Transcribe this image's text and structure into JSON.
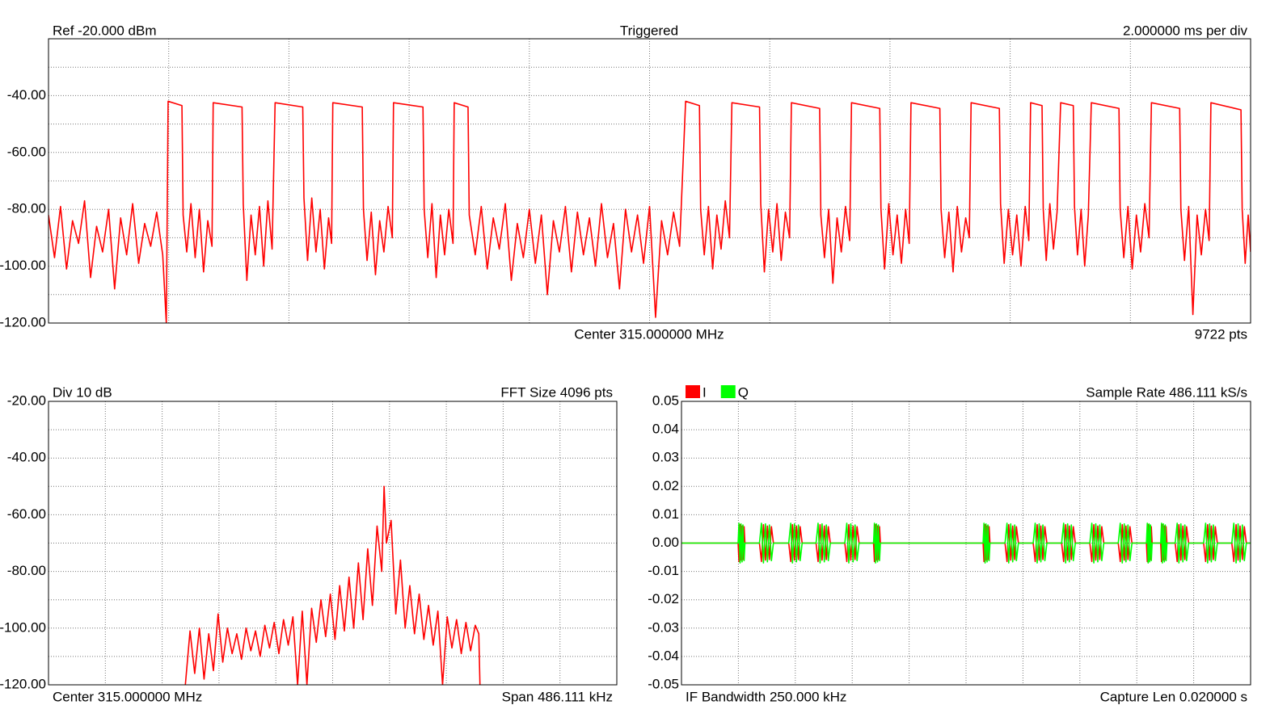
{
  "chart_data": [
    {
      "type": "line",
      "header_left": "Ref -20.000 dBm",
      "header_center": "Triggered",
      "header_right": "2.000000 ms per div",
      "footer_center": "Center 315.000000 MHz",
      "footer_right": "9722 pts",
      "color": "#ff0000",
      "xlim": [
        0,
        20
      ],
      "xgrid": [
        2,
        4,
        6,
        8,
        10,
        12,
        14,
        16,
        18
      ],
      "ylim": [
        -120,
        -20
      ],
      "yticks": [
        {
          "value": -40,
          "label": "-40.00"
        },
        {
          "value": -60,
          "label": "-60.00"
        },
        {
          "value": -80,
          "label": "-80.00"
        },
        {
          "value": -100,
          "label": "-100.00"
        },
        {
          "value": -120,
          "label": "-120.00"
        }
      ],
      "ygrid_minor": [
        -30,
        -50,
        -70,
        -90,
        -110
      ],
      "x": [
        0,
        0.1,
        0.2,
        0.3,
        0.4,
        0.5,
        0.6,
        0.7,
        0.8,
        0.9,
        1.0,
        1.1,
        1.2,
        1.3,
        1.4,
        1.5,
        1.6,
        1.7,
        1.8,
        1.9,
        1.96,
        1.99,
        2.22,
        2.24,
        2.3,
        2.37,
        2.44,
        2.51,
        2.58,
        2.65,
        2.72,
        2.74,
        3.22,
        3.24,
        3.3,
        3.37,
        3.44,
        3.51,
        3.58,
        3.65,
        3.72,
        3.77,
        4.23,
        4.25,
        4.31,
        4.38,
        4.45,
        4.52,
        4.59,
        4.66,
        4.71,
        4.73,
        5.22,
        5.24,
        5.3,
        5.37,
        5.44,
        5.51,
        5.58,
        5.65,
        5.72,
        5.74,
        6.23,
        6.25,
        6.31,
        6.38,
        6.45,
        6.52,
        6.59,
        6.66,
        6.73,
        6.75,
        6.98,
        7.0,
        7.1,
        7.2,
        7.3,
        7.4,
        7.5,
        7.6,
        7.7,
        7.8,
        7.9,
        8.0,
        8.1,
        8.2,
        8.3,
        8.4,
        8.5,
        8.6,
        8.7,
        8.8,
        8.9,
        9.0,
        9.1,
        9.2,
        9.3,
        9.4,
        9.5,
        9.6,
        9.7,
        9.8,
        9.9,
        10.0,
        10.1,
        10.2,
        10.3,
        10.4,
        10.5,
        10.6,
        10.83,
        10.85,
        10.91,
        10.98,
        11.05,
        11.12,
        11.19,
        11.26,
        11.33,
        11.37,
        11.83,
        11.85,
        11.91,
        11.98,
        12.05,
        12.12,
        12.19,
        12.26,
        12.33,
        12.36,
        12.83,
        12.85,
        12.91,
        12.98,
        13.05,
        13.12,
        13.19,
        13.26,
        13.33,
        13.36,
        13.83,
        13.85,
        13.91,
        13.98,
        14.05,
        14.12,
        14.19,
        14.26,
        14.32,
        14.35,
        14.83,
        14.85,
        14.91,
        14.98,
        15.05,
        15.12,
        15.19,
        15.26,
        15.32,
        15.35,
        15.82,
        15.84,
        15.9,
        15.97,
        16.04,
        16.11,
        16.18,
        16.25,
        16.31,
        16.34,
        16.53,
        16.55,
        16.6,
        16.66,
        16.72,
        16.78,
        16.84,
        17.05,
        17.07,
        17.12,
        17.18,
        17.24,
        17.3,
        17.35,
        17.81,
        17.83,
        17.89,
        17.96,
        18.03,
        18.1,
        18.17,
        18.24,
        18.31,
        18.35,
        18.82,
        18.84,
        18.9,
        18.97,
        19.04,
        19.11,
        19.18,
        19.25,
        19.31,
        19.34,
        19.84,
        19.86,
        19.91,
        19.96,
        20.0
      ],
      "values": [
        -82,
        -97,
        -79,
        -101,
        -84,
        -92,
        -77,
        -104,
        -86,
        -95,
        -80,
        -108,
        -83,
        -96,
        -78,
        -99,
        -85,
        -93,
        -81,
        -96,
        -120,
        -42,
        -43.5,
        -82,
        -95,
        -78,
        -97,
        -80,
        -102,
        -84,
        -93,
        -42.5,
        -44,
        -78,
        -105,
        -82,
        -96,
        -79,
        -100,
        -77,
        -94,
        -42.5,
        -44,
        -76,
        -98,
        -76,
        -95,
        -80,
        -101,
        -83,
        -92,
        -42.5,
        -44,
        -80,
        -98,
        -81,
        -103,
        -84,
        -95,
        -79,
        -90,
        -42.5,
        -44,
        -80,
        -97,
        -78,
        -104,
        -82,
        -96,
        -80,
        -92,
        -42.5,
        -44,
        -82,
        -96,
        -79,
        -101,
        -83,
        -94,
        -78,
        -105,
        -85,
        -97,
        -80,
        -99,
        -82,
        -110,
        -84,
        -95,
        -79,
        -102,
        -81,
        -96,
        -83,
        -100,
        -78,
        -97,
        -85,
        -108,
        -80,
        -95,
        -82,
        -99,
        -79,
        -118,
        -84,
        -96,
        -81,
        -93,
        -42,
        -43.5,
        -80,
        -96,
        -79,
        -101,
        -82,
        -94,
        -77,
        -90,
        -42.5,
        -44,
        -78,
        -102,
        -80,
        -95,
        -78,
        -98,
        -81,
        -90,
        -42.5,
        -44.5,
        -82,
        -97,
        -80,
        -106,
        -83,
        -95,
        -79,
        -91,
        -42.5,
        -44.5,
        -80,
        -101,
        -78,
        -96,
        -82,
        -99,
        -80,
        -92,
        -42.5,
        -44.5,
        -80,
        -97,
        -81,
        -102,
        -79,
        -95,
        -83,
        -90,
        -42.5,
        -44.5,
        -78,
        -99,
        -80,
        -96,
        -82,
        -100,
        -79,
        -91,
        -42.5,
        -43.5,
        -80,
        -98,
        -78,
        -94,
        -81,
        -42.5,
        -43.5,
        -79,
        -96,
        -80,
        -100,
        -82,
        -42.5,
        -44.5,
        -80,
        -97,
        -79,
        -101,
        -82,
        -95,
        -78,
        -90,
        -42.5,
        -44.5,
        -80,
        -98,
        -79,
        -117,
        -82,
        -96,
        -80,
        -91,
        -42.5,
        -45,
        -80,
        -99,
        -82,
        -95
      ]
    },
    {
      "type": "line",
      "header_left": "Div 10 dB",
      "header_right": "FFT Size 4096 pts",
      "footer_left": "Center 315.000000 MHz",
      "footer_right": "Span 486.111 kHz",
      "color": "#ff0000",
      "xlim": [
        -243.056,
        243.056
      ],
      "xgrid": [
        -194.444,
        -145.833,
        -97.222,
        -48.611,
        0,
        48.611,
        97.222,
        145.833,
        194.444
      ],
      "ylim": [
        -120,
        -20
      ],
      "yticks": [
        {
          "value": -20,
          "label": "-20.00"
        },
        {
          "value": -40,
          "label": "-40.00"
        },
        {
          "value": -60,
          "label": "-60.00"
        },
        {
          "value": -80,
          "label": "-80.00"
        },
        {
          "value": -100,
          "label": "-100.00"
        },
        {
          "value": -120,
          "label": "-120.00"
        }
      ],
      "ygrid_minor": [
        -30,
        -50,
        -70,
        -90,
        -110
      ],
      "x": [
        -126,
        -122,
        -118,
        -114,
        -110,
        -106,
        -102,
        -98,
        -94,
        -90,
        -86,
        -82,
        -78,
        -74,
        -70,
        -66,
        -62,
        -58,
        -54,
        -50,
        -46,
        -42,
        -38,
        -34,
        -30,
        -26,
        -22,
        -18,
        -14,
        -10,
        -6,
        -2,
        2,
        6,
        10,
        14,
        18,
        22,
        26,
        30,
        34,
        38,
        42,
        44,
        46,
        50,
        54,
        58,
        62,
        66,
        70,
        74,
        78,
        82,
        86,
        90,
        94,
        98,
        102,
        106,
        110,
        114,
        118,
        122,
        125,
        126
      ],
      "values": [
        -120,
        -101,
        -116,
        -100,
        -118,
        -102,
        -115,
        -95,
        -112,
        -100,
        -109,
        -102,
        -111,
        -100,
        -108,
        -101,
        -110,
        -99,
        -107,
        -98,
        -109,
        -97,
        -106,
        -96,
        -120,
        -94,
        -120,
        -93,
        -105,
        -90,
        -103,
        -88,
        -104,
        -85,
        -101,
        -82,
        -100,
        -77,
        -97,
        -72,
        -92,
        -64,
        -80,
        -50,
        -70,
        -62,
        -95,
        -76,
        -100,
        -85,
        -102,
        -88,
        -104,
        -92,
        -106,
        -94,
        -120,
        -96,
        -107,
        -97,
        -109,
        -98,
        -108,
        -99,
        -102,
        -120
      ]
    },
    {
      "type": "line",
      "header_right": "Sample Rate 486.111 kS/s",
      "footer_left": "IF Bandwidth 250.000 kHz",
      "footer_right": "Capture Len 0.020000 s",
      "legend": "top-left",
      "xlim": [
        0,
        20
      ],
      "xgrid": [
        2,
        4,
        6,
        8,
        10,
        12,
        14,
        16,
        18
      ],
      "ylim": [
        -0.05,
        0.05
      ],
      "yticks": [
        0.05,
        0.04,
        0.03,
        0.02,
        0.01,
        {
          "value": 0,
          "label": "0.00"
        },
        -0.01,
        -0.02,
        -0.03,
        -0.04,
        -0.05
      ],
      "x": [
        0,
        1.99,
        2.02,
        2.06,
        2.09,
        2.13,
        2.16,
        2.2,
        2.23,
        2.74,
        2.81,
        2.88,
        2.95,
        3.02,
        3.09,
        3.16,
        3.23,
        3.77,
        3.84,
        3.9,
        3.97,
        4.04,
        4.11,
        4.17,
        4.24,
        4.73,
        4.8,
        4.87,
        4.94,
        5.02,
        5.09,
        5.16,
        5.23,
        5.74,
        5.81,
        5.88,
        5.95,
        6.03,
        6.1,
        6.17,
        6.24,
        6.75,
        6.78,
        6.82,
        6.85,
        6.89,
        6.92,
        6.96,
        6.99,
        10.6,
        10.63,
        10.67,
        10.7,
        10.74,
        10.77,
        10.81,
        10.84,
        11.37,
        11.44,
        11.5,
        11.57,
        11.64,
        11.71,
        11.77,
        11.84,
        12.36,
        12.43,
        12.5,
        12.57,
        12.63,
        12.7,
        12.77,
        12.84,
        13.36,
        13.43,
        13.5,
        13.57,
        13.63,
        13.7,
        13.77,
        13.84,
        14.35,
        14.42,
        14.49,
        14.56,
        14.63,
        14.7,
        14.77,
        14.84,
        15.35,
        15.42,
        15.49,
        15.56,
        15.62,
        15.69,
        15.76,
        15.83,
        16.34,
        16.37,
        16.4,
        16.43,
        16.45,
        16.48,
        16.51,
        16.54,
        16.84,
        16.87,
        16.9,
        16.93,
        16.97,
        17.0,
        17.03,
        17.06,
        17.35,
        17.42,
        17.48,
        17.55,
        17.62,
        17.69,
        17.75,
        17.82,
        18.35,
        18.42,
        18.49,
        18.56,
        18.62,
        18.69,
        18.76,
        18.83,
        19.34,
        19.41,
        19.49,
        19.56,
        19.63,
        19.71,
        19.78,
        19.85,
        20
      ],
      "series": [
        {
          "name": "I",
          "color": "#ff0000",
          "values": [
            0,
            0,
            -0.0065,
            0.0065,
            -0.006,
            0.006,
            -0.0058,
            0.0058,
            0,
            0,
            -0.0065,
            0.0065,
            -0.006,
            0.006,
            -0.0058,
            0.0058,
            0,
            0,
            -0.0065,
            0.0065,
            -0.006,
            0.006,
            -0.0058,
            0.0058,
            0,
            0,
            -0.0065,
            0.0065,
            -0.006,
            0.006,
            -0.0058,
            0.0058,
            0,
            0,
            -0.0065,
            0.0065,
            -0.006,
            0.006,
            -0.0058,
            0.0058,
            0,
            0,
            -0.0065,
            0.0065,
            -0.006,
            0.006,
            -0.0058,
            0.0058,
            0,
            0,
            -0.0065,
            0.0065,
            -0.006,
            0.006,
            -0.0058,
            0.0058,
            0,
            0,
            -0.0065,
            0.0065,
            -0.006,
            0.006,
            -0.0058,
            0.0058,
            0,
            0,
            -0.0065,
            0.0065,
            -0.006,
            0.006,
            -0.0058,
            0.0058,
            0,
            0,
            -0.0065,
            0.0065,
            -0.006,
            0.006,
            -0.0058,
            0.0058,
            0,
            0,
            -0.0065,
            0.0065,
            -0.006,
            0.006,
            -0.0058,
            0.0058,
            0,
            0,
            -0.0065,
            0.0065,
            -0.006,
            0.006,
            -0.0058,
            0.0058,
            0,
            0,
            -0.0065,
            0.0065,
            -0.006,
            0.006,
            -0.0058,
            0.0058,
            0,
            0,
            -0.0065,
            0.0065,
            -0.006,
            0.006,
            -0.0058,
            0.0058,
            0,
            0,
            -0.0065,
            0.0065,
            -0.006,
            0.006,
            -0.0058,
            0.0058,
            0,
            0,
            -0.0065,
            0.0065,
            -0.006,
            0.006,
            -0.0058,
            0.0058,
            0,
            0,
            -0.0065,
            0.0065,
            -0.006,
            0.006,
            -0.0058,
            0.0058,
            0,
            0
          ]
        },
        {
          "name": "Q",
          "color": "#00ff00",
          "values": [
            0,
            0,
            0.007,
            -0.007,
            0.0068,
            -0.0066,
            0.0064,
            -0.0062,
            0,
            0,
            0.007,
            -0.007,
            0.0068,
            -0.0066,
            0.0064,
            -0.0062,
            0,
            0,
            0.007,
            -0.007,
            0.0068,
            -0.0066,
            0.0064,
            -0.0062,
            0,
            0,
            0.007,
            -0.007,
            0.0068,
            -0.0066,
            0.0064,
            -0.0062,
            0,
            0,
            0.007,
            -0.007,
            0.0068,
            -0.0066,
            0.0064,
            -0.0062,
            0,
            0,
            0.007,
            -0.007,
            0.0068,
            -0.0066,
            0.0064,
            -0.0062,
            0,
            0,
            0.007,
            -0.007,
            0.0068,
            -0.0066,
            0.0064,
            -0.0062,
            0,
            0,
            0.007,
            -0.007,
            0.0068,
            -0.0066,
            0.0064,
            -0.0062,
            0,
            0,
            0.007,
            -0.007,
            0.0068,
            -0.0066,
            0.0064,
            -0.0062,
            0,
            0,
            0.007,
            -0.007,
            0.0068,
            -0.0066,
            0.0064,
            -0.0062,
            0,
            0,
            0.007,
            -0.007,
            0.0068,
            -0.0066,
            0.0064,
            -0.0062,
            0,
            0,
            0.007,
            -0.007,
            0.0068,
            -0.0066,
            0.0064,
            -0.0062,
            0,
            0,
            0.007,
            -0.007,
            0.0068,
            -0.0066,
            0.0064,
            -0.0062,
            0,
            0,
            0.007,
            -0.007,
            0.0068,
            -0.0066,
            0.0064,
            -0.0062,
            0,
            0,
            0.007,
            -0.007,
            0.0068,
            -0.0066,
            0.0064,
            -0.0062,
            0,
            0,
            0.007,
            -0.007,
            0.0068,
            -0.0066,
            0.0064,
            -0.0062,
            0,
            0,
            0.007,
            -0.007,
            0.0068,
            -0.0066,
            0.0064,
            -0.0062,
            0,
            0
          ]
        }
      ]
    }
  ]
}
